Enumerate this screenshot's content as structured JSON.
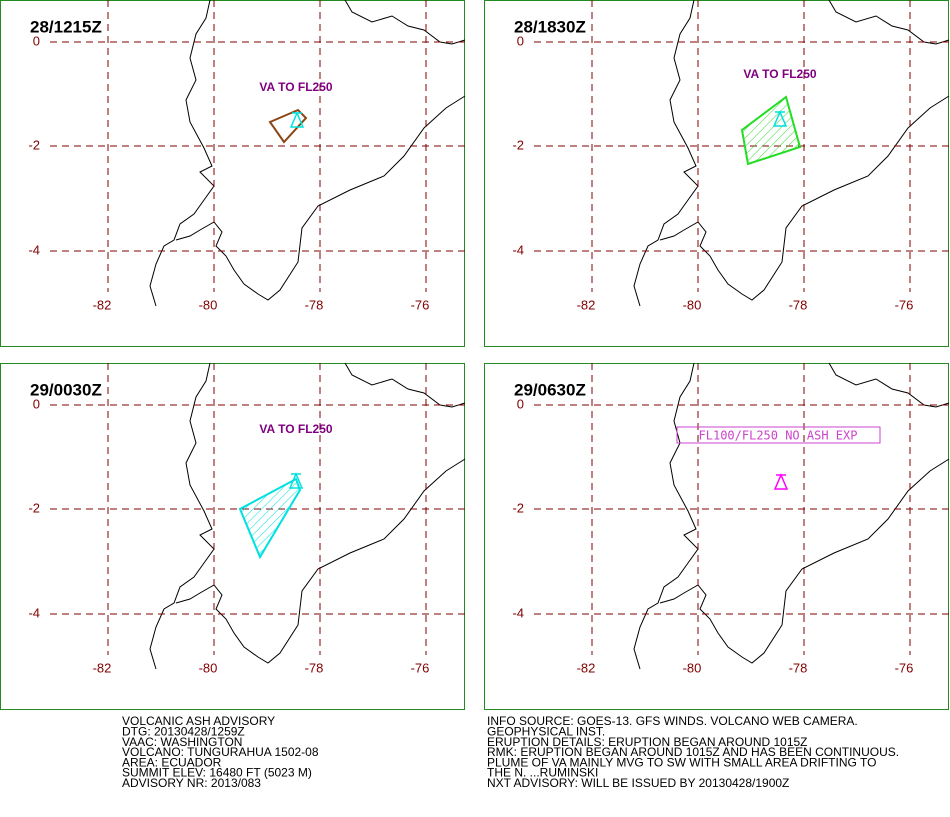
{
  "panels": [
    {
      "time": "28/1215Z",
      "annotation": "VA TO FL250"
    },
    {
      "time": "28/1830Z",
      "annotation": "VA TO FL250"
    },
    {
      "time": "29/0030Z",
      "annotation": "VA TO FL250"
    },
    {
      "time": "29/0630Z",
      "annotation": "FL100/FL250 NO ASH EXP"
    }
  ],
  "lat_labels": [
    0,
    -2,
    -4
  ],
  "lon_labels": [
    -82,
    -80,
    -78,
    -76
  ],
  "advisory": [
    "VOLCANIC ASH ADVISORY",
    "DTG: 20130428/1259Z",
    "VAAC: WASHINGTON",
    "VOLCANO: TUNGURAHUA 1502-08",
    "AREA: ECUADOR",
    "SUMMIT ELEV: 16480 FT (5023 M)",
    "ADVISORY NR: 2013/083"
  ],
  "info": [
    "INFO SOURCE: GOES-13. GFS WINDS. VOLCANO WEB CAMERA.",
    "GEOPHYSICAL INST.",
    "ERUPTION DETAILS: ERUPTION BEGAN AROUND 1015Z",
    "RMK: ERUPTION BEGAN AROUND 1015Z AND HAS BEEN CONTINUOUS.",
    "PLUME OF VA MAINLY MVG TO SW WITH SMALL AREA DRIFTING TO",
    "THE N. ...RUMINSKI",
    "NXT ADVISORY: WILL BE ISSUED BY 20130428/1900Z"
  ]
}
